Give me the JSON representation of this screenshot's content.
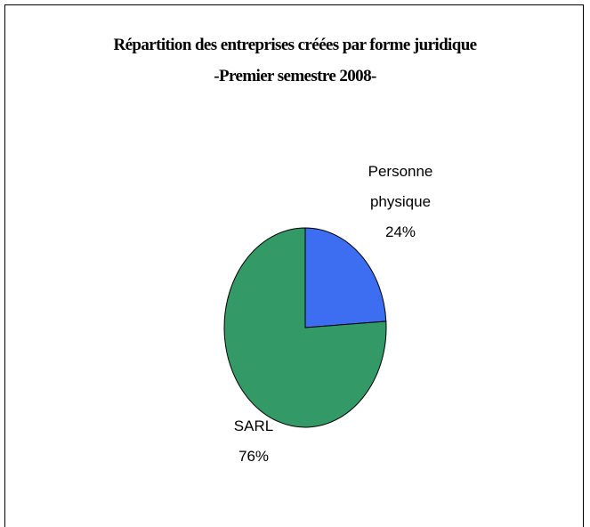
{
  "chart_data": {
    "type": "pie",
    "title": "Répartition des entreprises créées par forme juridique",
    "subtitle": "-Premier semestre 2008-",
    "categories": [
      "Personne physique",
      "SARL"
    ],
    "values": [
      24,
      76
    ],
    "value_labels": [
      "24%",
      "76%"
    ],
    "colors": [
      "#3d6ef2",
      "#339966"
    ]
  }
}
